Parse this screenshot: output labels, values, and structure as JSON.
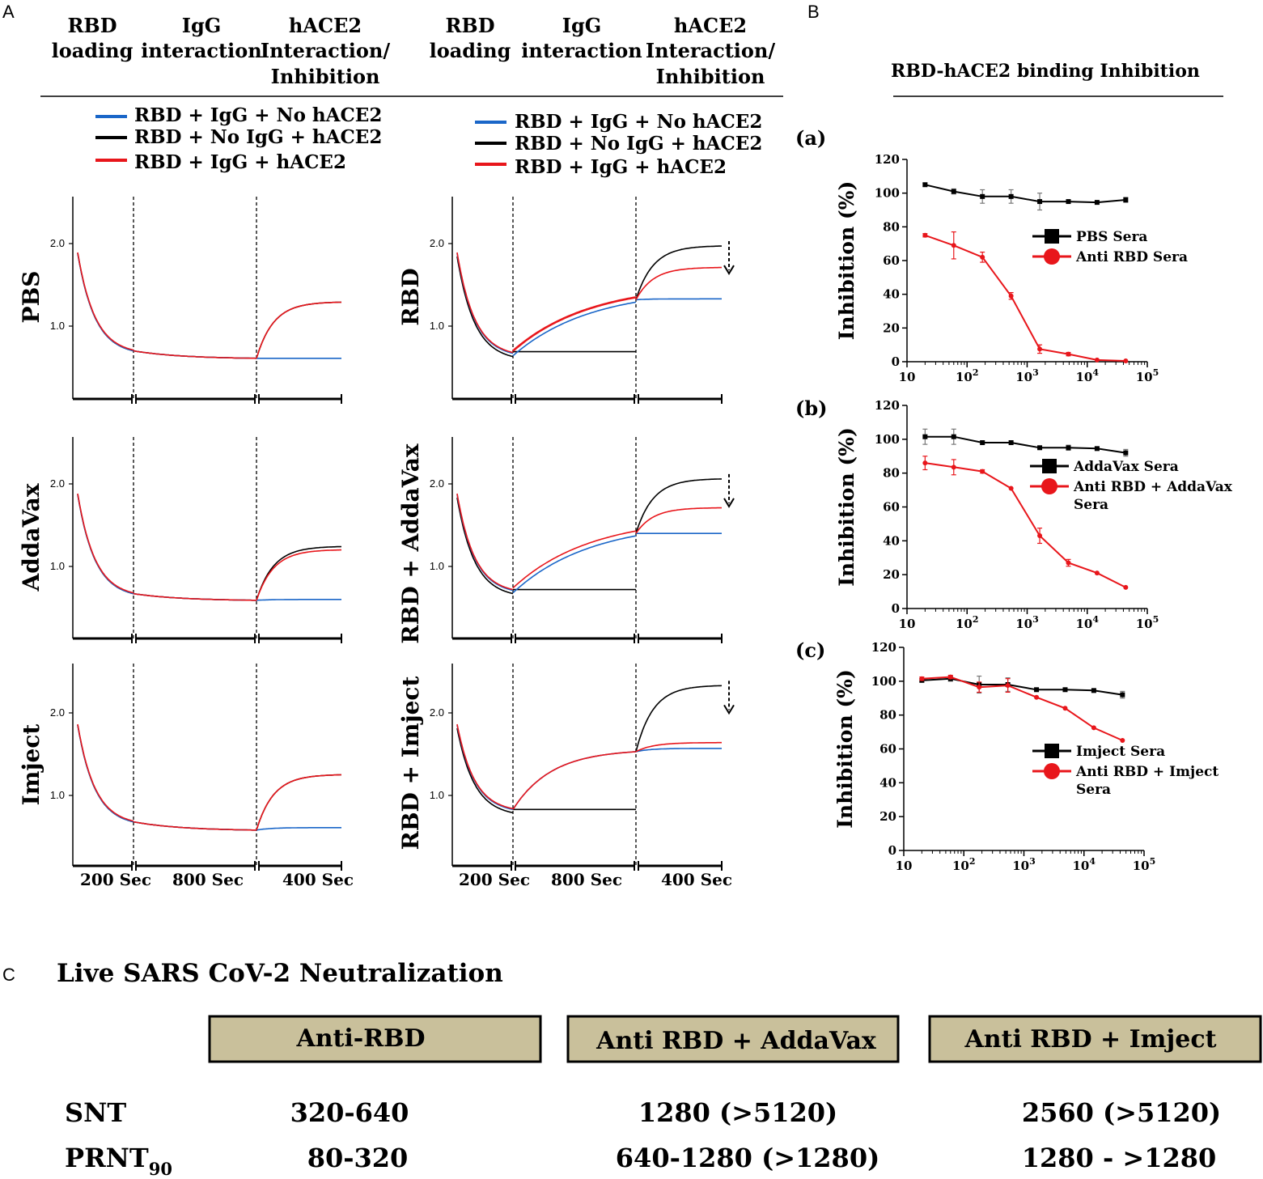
{
  "panels": {
    "A": "A",
    "B": "B",
    "C": "C"
  },
  "panelA": {
    "phase_headers": {
      "col1": [
        "RBD",
        "loading"
      ],
      "col2": [
        "IgG",
        "interaction"
      ],
      "col3": [
        "hACE2",
        "Interaction/",
        "Inhibition"
      ]
    },
    "legend": [
      {
        "label": "RBD + IgG + No hACE2",
        "color": "#1a66c8"
      },
      {
        "label": "RBD + No IgG + hACE2",
        "color": "#000000"
      },
      {
        "label": "RBD + IgG + hACE2",
        "color": "#e8161b"
      }
    ],
    "x_labels": [
      "200 Sec",
      "800 Sec",
      "400 Sec"
    ],
    "y_ticks": [
      "1.0",
      "2.0"
    ],
    "row_labels_left": [
      "PBS",
      "AddaVax",
      "Imject"
    ],
    "row_labels_right": [
      "RBD",
      "RBD + AddaVax",
      "RBD + Imject"
    ]
  },
  "panelB": {
    "title": "RBD-hACE2 binding Inhibition",
    "ylabel": "Inhibition (%)",
    "y_ticks": [
      "0",
      "20",
      "40",
      "60",
      "80",
      "100",
      "120"
    ],
    "x_ticks": [
      "10",
      "10",
      "10",
      "10",
      "10"
    ],
    "x_exps": [
      "",
      "2",
      "3",
      "4",
      "5"
    ]
  },
  "chart_data": [
    {
      "type": "line",
      "panel": "B(a)",
      "label": "(a)",
      "xscale": "log",
      "xlim": [
        10,
        100000
      ],
      "ylim": [
        0,
        120
      ],
      "ylabel": "Inhibition (%)",
      "x": [
        20,
        60,
        180,
        540,
        1620,
        4860,
        14580,
        43740
      ],
      "series": [
        {
          "name": "PBS Sera",
          "color": "#000000",
          "marker": "square",
          "values": [
            105,
            101,
            98,
            98,
            95,
            95,
            94.5,
            96
          ],
          "errors": [
            1,
            1.5,
            4,
            4,
            5,
            1,
            0.5,
            1.5
          ]
        },
        {
          "name": "Anti RBD Sera",
          "color": "#e8161b",
          "marker": "circle",
          "values": [
            75,
            69,
            62,
            39,
            7.5,
            4.5,
            1,
            0.5
          ],
          "errors": [
            1,
            8,
            3,
            2,
            2.5,
            1,
            0.5,
            0.5
          ]
        }
      ],
      "legend_labels": [
        [
          "PBS Sera"
        ],
        [
          "Anti RBD Sera"
        ]
      ]
    },
    {
      "type": "line",
      "panel": "B(b)",
      "label": "(b)",
      "xscale": "log",
      "xlim": [
        10,
        100000
      ],
      "ylim": [
        0,
        120
      ],
      "ylabel": "Inhibition (%)",
      "x": [
        20,
        60,
        180,
        540,
        1620,
        4860,
        14580,
        43740
      ],
      "series": [
        {
          "name": "AddaVax Sera",
          "color": "#000000",
          "marker": "square",
          "values": [
            101.5,
            101.5,
            98,
            98,
            95,
            95,
            94.5,
            92
          ],
          "errors": [
            4.5,
            4.5,
            1,
            0.5,
            0.5,
            1.5,
            1,
            2
          ]
        },
        {
          "name": "Anti RBD + AddaVax Sera",
          "color": "#e8161b",
          "marker": "circle",
          "values": [
            86,
            83.5,
            81,
            71,
            43,
            27,
            21,
            12.5
          ],
          "errors": [
            4,
            4.5,
            1,
            0.5,
            4.5,
            2,
            0.5,
            0.5
          ]
        }
      ],
      "legend_labels": [
        [
          "AddaVax Sera"
        ],
        [
          "Anti RBD + AddaVax",
          "Sera"
        ]
      ]
    },
    {
      "type": "line",
      "panel": "B(c)",
      "label": "(c)",
      "xscale": "log",
      "xlim": [
        10,
        100000
      ],
      "ylim": [
        0,
        120
      ],
      "ylabel": "Inhibition (%)",
      "x": [
        20,
        60,
        180,
        540,
        1620,
        4860,
        14580,
        43740
      ],
      "series": [
        {
          "name": "Imject Sera",
          "color": "#000000",
          "marker": "square",
          "values": [
            100.5,
            101.5,
            98,
            98,
            95,
            95,
            94.5,
            92
          ],
          "errors": [
            1,
            1.5,
            5,
            4,
            0.5,
            0.5,
            0.5,
            2
          ]
        },
        {
          "name": "Anti RBD + Imject Sera",
          "color": "#e8161b",
          "marker": "circle",
          "values": [
            101.5,
            102.5,
            96.5,
            97.5,
            90.5,
            84,
            72.5,
            65
          ],
          "errors": [
            1,
            1,
            3,
            4,
            0.5,
            0.5,
            0.5,
            0.5
          ]
        }
      ],
      "legend_labels": [
        [
          "Imject Sera"
        ],
        [
          "Anti RBD + Imject",
          "Sera"
        ]
      ]
    }
  ],
  "panelC": {
    "title": "Live SARS CoV-2 Neutralization",
    "columns": [
      "Anti-RBD",
      "Anti RBD + AddaVax",
      "Anti RBD + Imject"
    ],
    "rows": [
      {
        "label": "SNT",
        "sub": "",
        "values": [
          "320-640",
          "1280 (>5120)",
          "2560 (>5120)"
        ]
      },
      {
        "label": "PRNT",
        "sub": "90",
        "values": [
          "80-320",
          "640-1280 (>1280)",
          "1280 - >1280"
        ]
      }
    ],
    "box_fill": "#c9c09b"
  }
}
